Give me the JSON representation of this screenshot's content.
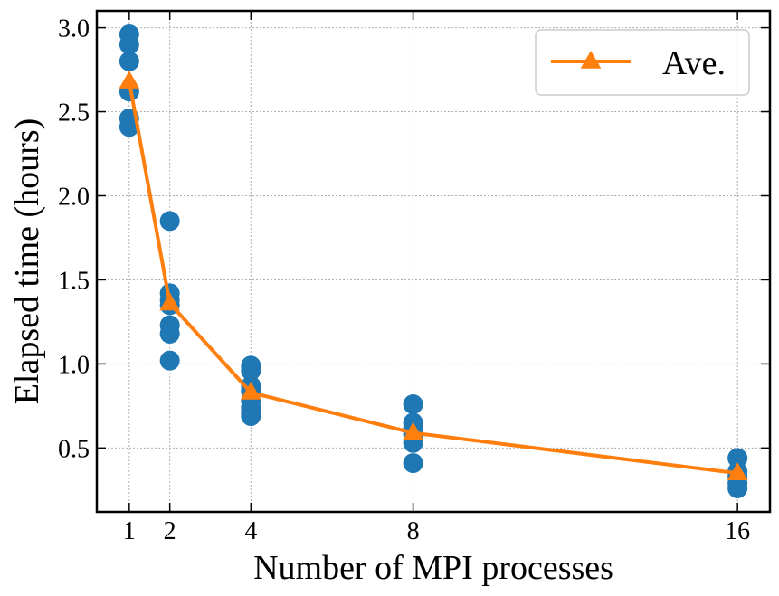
{
  "chart_data": {
    "type": "scatter",
    "xlabel": "Number of MPI processes",
    "ylabel": "Elapsed time (hours)",
    "xlim": [
      0.2,
      16.8
    ],
    "ylim": [
      0.12,
      3.1
    ],
    "x_ticks": [
      1,
      2,
      4,
      8,
      16
    ],
    "x_tick_labels": [
      "1",
      "2",
      "4",
      "8",
      "16"
    ],
    "y_ticks": [
      0.5,
      1.0,
      1.5,
      2.0,
      2.5,
      3.0
    ],
    "y_tick_labels": [
      "0.5",
      "1.0",
      "1.5",
      "2.0",
      "2.5",
      "3.0"
    ],
    "grid": true,
    "legend_position": "top-right",
    "series": [
      {
        "kind": "scatter",
        "color": "#1f77b4",
        "points": [
          [
            1,
            2.96
          ],
          [
            1,
            2.9
          ],
          [
            1,
            2.8
          ],
          [
            1,
            2.62
          ],
          [
            1,
            2.46
          ],
          [
            1,
            2.41
          ],
          [
            2,
            1.85
          ],
          [
            2,
            1.42
          ],
          [
            2,
            1.38
          ],
          [
            2,
            1.35
          ],
          [
            2,
            1.23
          ],
          [
            2,
            1.18
          ],
          [
            2,
            1.02
          ],
          [
            4,
            0.99
          ],
          [
            4,
            0.96
          ],
          [
            4,
            0.87
          ],
          [
            4,
            0.84
          ],
          [
            4,
            0.78
          ],
          [
            4,
            0.74
          ],
          [
            4,
            0.71
          ],
          [
            4,
            0.69
          ],
          [
            8,
            0.76
          ],
          [
            8,
            0.65
          ],
          [
            8,
            0.62
          ],
          [
            8,
            0.58
          ],
          [
            8,
            0.53
          ],
          [
            8,
            0.41
          ],
          [
            16,
            0.44
          ],
          [
            16,
            0.36
          ],
          [
            16,
            0.33
          ],
          [
            16,
            0.29
          ],
          [
            16,
            0.26
          ]
        ]
      },
      {
        "kind": "line",
        "name": "Ave.",
        "color": "#ff7f0e",
        "marker": "triangle",
        "x": [
          1,
          2,
          4,
          8,
          16
        ],
        "y": [
          2.68,
          1.36,
          0.83,
          0.59,
          0.35
        ]
      }
    ]
  }
}
